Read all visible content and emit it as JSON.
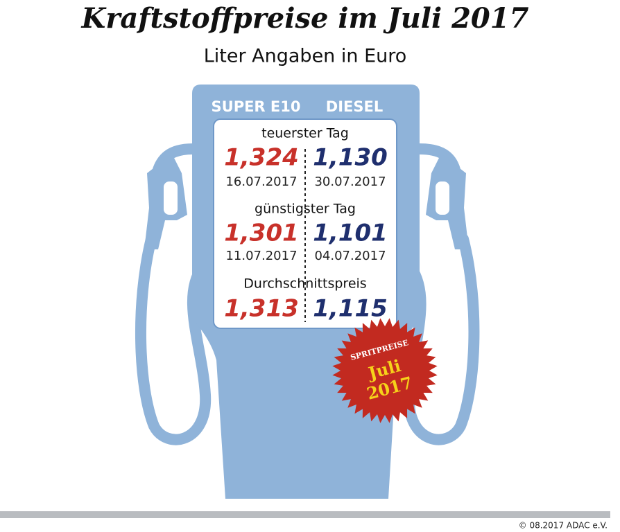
{
  "header": {
    "title": "Kraftstoffpreise im Juli 2017",
    "subtitle": "Liter Angaben in Euro"
  },
  "columns": [
    "SUPER E10",
    "DIESEL"
  ],
  "sections": [
    {
      "label": "teuerster Tag",
      "values": [
        "1,324",
        "1,130"
      ],
      "dates": [
        "16.07.2017",
        "30.07.2017"
      ]
    },
    {
      "label": "günstigster Tag",
      "values": [
        "1,301",
        "1,101"
      ],
      "dates": [
        "11.07.2017",
        "04.07.2017"
      ]
    },
    {
      "label": "Durchschnittspreis",
      "values": [
        "1,313",
        "1,115"
      ]
    }
  ],
  "badge": {
    "top": "SPRITPREISE",
    "month": "Juli",
    "year": "2017"
  },
  "footer": {
    "copyright": "© 08.2017 ADAC e.V."
  }
}
